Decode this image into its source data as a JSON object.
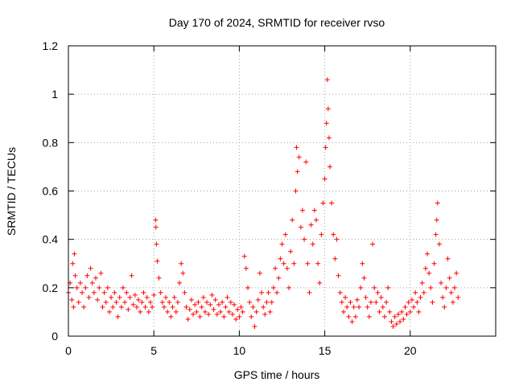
{
  "chart_data": {
    "type": "scatter",
    "title": "Day 170 of 2024, SRMTID for receiver rvso",
    "xlabel": "GPS time / hours",
    "ylabel": "SRMTID / TECUs",
    "xlim": [
      0,
      25
    ],
    "ylim": [
      0,
      1.2
    ],
    "x_ticks": [
      0,
      5,
      10,
      15,
      20
    ],
    "x_tick_labels": [
      "0",
      "5",
      "10",
      "15",
      "20"
    ],
    "y_ticks": [
      0,
      0.2,
      0.4,
      0.6,
      0.8,
      1.0,
      1.2
    ],
    "y_tick_labels": [
      "0",
      "0.2",
      "0.4",
      "0.6",
      "0.8",
      "1",
      "1.2"
    ],
    "grid": true,
    "marker": "+",
    "color": "#ff0000",
    "series": [
      {
        "name": "SRMTID",
        "points": [
          [
            0.0,
            0.18
          ],
          [
            0.1,
            0.22
          ],
          [
            0.2,
            0.15
          ],
          [
            0.25,
            0.3
          ],
          [
            0.3,
            0.12
          ],
          [
            0.35,
            0.34
          ],
          [
            0.4,
            0.25
          ],
          [
            0.5,
            0.2
          ],
          [
            0.6,
            0.14
          ],
          [
            0.7,
            0.22
          ],
          [
            0.8,
            0.18
          ],
          [
            0.9,
            0.12
          ],
          [
            1.0,
            0.2
          ],
          [
            1.1,
            0.25
          ],
          [
            1.2,
            0.16
          ],
          [
            1.3,
            0.28
          ],
          [
            1.4,
            0.22
          ],
          [
            1.5,
            0.18
          ],
          [
            1.6,
            0.24
          ],
          [
            1.7,
            0.15
          ],
          [
            1.8,
            0.2
          ],
          [
            1.9,
            0.26
          ],
          [
            2.0,
            0.12
          ],
          [
            2.1,
            0.18
          ],
          [
            2.2,
            0.14
          ],
          [
            2.3,
            0.2
          ],
          [
            2.4,
            0.1
          ],
          [
            2.5,
            0.16
          ],
          [
            2.6,
            0.12
          ],
          [
            2.7,
            0.18
          ],
          [
            2.8,
            0.14
          ],
          [
            2.9,
            0.08
          ],
          [
            3.0,
            0.16
          ],
          [
            3.1,
            0.12
          ],
          [
            3.2,
            0.2
          ],
          [
            3.3,
            0.14
          ],
          [
            3.4,
            0.18
          ],
          [
            3.5,
            0.11
          ],
          [
            3.6,
            0.16
          ],
          [
            3.7,
            0.25
          ],
          [
            3.8,
            0.13
          ],
          [
            3.9,
            0.17
          ],
          [
            4.0,
            0.12
          ],
          [
            4.1,
            0.15
          ],
          [
            4.2,
            0.1
          ],
          [
            4.3,
            0.14
          ],
          [
            4.4,
            0.18
          ],
          [
            4.5,
            0.12
          ],
          [
            4.6,
            0.16
          ],
          [
            4.7,
            0.1
          ],
          [
            4.8,
            0.14
          ],
          [
            4.9,
            0.12
          ],
          [
            5.0,
            0.17
          ],
          [
            5.1,
            0.48
          ],
          [
            5.12,
            0.45
          ],
          [
            5.15,
            0.38
          ],
          [
            5.2,
            0.31
          ],
          [
            5.3,
            0.24
          ],
          [
            5.4,
            0.18
          ],
          [
            5.5,
            0.14
          ],
          [
            5.6,
            0.12
          ],
          [
            5.7,
            0.16
          ],
          [
            5.8,
            0.1
          ],
          [
            5.9,
            0.14
          ],
          [
            6.0,
            0.08
          ],
          [
            6.1,
            0.12
          ],
          [
            6.2,
            0.16
          ],
          [
            6.3,
            0.1
          ],
          [
            6.4,
            0.14
          ],
          [
            6.5,
            0.22
          ],
          [
            6.6,
            0.3
          ],
          [
            6.7,
            0.26
          ],
          [
            6.8,
            0.18
          ],
          [
            6.9,
            0.12
          ],
          [
            7.0,
            0.07
          ],
          [
            7.1,
            0.11
          ],
          [
            7.2,
            0.15
          ],
          [
            7.3,
            0.09
          ],
          [
            7.4,
            0.13
          ],
          [
            7.5,
            0.1
          ],
          [
            7.6,
            0.14
          ],
          [
            7.7,
            0.08
          ],
          [
            7.8,
            0.12
          ],
          [
            7.9,
            0.16
          ],
          [
            8.0,
            0.1
          ],
          [
            8.1,
            0.14
          ],
          [
            8.2,
            0.09
          ],
          [
            8.3,
            0.13
          ],
          [
            8.4,
            0.17
          ],
          [
            8.5,
            0.11
          ],
          [
            8.6,
            0.15
          ],
          [
            8.7,
            0.09
          ],
          [
            8.8,
            0.13
          ],
          [
            8.9,
            0.1
          ],
          [
            9.0,
            0.14
          ],
          [
            9.1,
            0.08
          ],
          [
            9.2,
            0.12
          ],
          [
            9.3,
            0.16
          ],
          [
            9.4,
            0.1
          ],
          [
            9.5,
            0.14
          ],
          [
            9.6,
            0.09
          ],
          [
            9.7,
            0.13
          ],
          [
            9.8,
            0.07
          ],
          [
            9.9,
            0.11
          ],
          [
            10.0,
            0.08
          ],
          [
            10.1,
            0.12
          ],
          [
            10.2,
            0.1
          ],
          [
            10.3,
            0.33
          ],
          [
            10.4,
            0.28
          ],
          [
            10.5,
            0.2
          ],
          [
            10.6,
            0.14
          ],
          [
            10.7,
            0.08
          ],
          [
            10.8,
            0.12
          ],
          [
            10.9,
            0.04
          ],
          [
            11.0,
            0.1
          ],
          [
            11.1,
            0.15
          ],
          [
            11.2,
            0.26
          ],
          [
            11.3,
            0.18
          ],
          [
            11.4,
            0.12
          ],
          [
            11.5,
            0.09
          ],
          [
            11.6,
            0.14
          ],
          [
            11.7,
            0.18
          ],
          [
            11.8,
            0.1
          ],
          [
            11.9,
            0.14
          ],
          [
            12.0,
            0.2
          ],
          [
            12.1,
            0.28
          ],
          [
            12.2,
            0.18
          ],
          [
            12.3,
            0.24
          ],
          [
            12.4,
            0.32
          ],
          [
            12.5,
            0.38
          ],
          [
            12.6,
            0.3
          ],
          [
            12.7,
            0.42
          ],
          [
            12.8,
            0.28
          ],
          [
            12.9,
            0.2
          ],
          [
            13.0,
            0.35
          ],
          [
            13.1,
            0.48
          ],
          [
            13.2,
            0.3
          ],
          [
            13.3,
            0.6
          ],
          [
            13.35,
            0.78
          ],
          [
            13.4,
            0.68
          ],
          [
            13.5,
            0.74
          ],
          [
            13.6,
            0.45
          ],
          [
            13.7,
            0.52
          ],
          [
            13.8,
            0.4
          ],
          [
            13.9,
            0.72
          ],
          [
            14.0,
            0.3
          ],
          [
            14.1,
            0.18
          ],
          [
            14.2,
            0.46
          ],
          [
            14.3,
            0.38
          ],
          [
            14.4,
            0.52
          ],
          [
            14.5,
            0.48
          ],
          [
            14.6,
            0.3
          ],
          [
            14.7,
            0.22
          ],
          [
            14.8,
            0.42
          ],
          [
            14.9,
            0.55
          ],
          [
            15.0,
            0.65
          ],
          [
            15.05,
            0.78
          ],
          [
            15.1,
            0.88
          ],
          [
            15.15,
            1.06
          ],
          [
            15.2,
            0.94
          ],
          [
            15.25,
            0.82
          ],
          [
            15.3,
            0.7
          ],
          [
            15.4,
            0.55
          ],
          [
            15.5,
            0.42
          ],
          [
            15.6,
            0.32
          ],
          [
            15.7,
            0.4
          ],
          [
            15.8,
            0.25
          ],
          [
            15.9,
            0.18
          ],
          [
            16.0,
            0.14
          ],
          [
            16.1,
            0.1
          ],
          [
            16.2,
            0.16
          ],
          [
            16.3,
            0.12
          ],
          [
            16.4,
            0.08
          ],
          [
            16.5,
            0.14
          ],
          [
            16.6,
            0.06
          ],
          [
            16.7,
            0.12
          ],
          [
            16.8,
            0.08
          ],
          [
            16.9,
            0.15
          ],
          [
            17.0,
            0.12
          ],
          [
            17.1,
            0.2
          ],
          [
            17.2,
            0.3
          ],
          [
            17.3,
            0.24
          ],
          [
            17.4,
            0.16
          ],
          [
            17.5,
            0.12
          ],
          [
            17.6,
            0.08
          ],
          [
            17.7,
            0.14
          ],
          [
            17.8,
            0.38
          ],
          [
            17.9,
            0.2
          ],
          [
            18.0,
            0.14
          ],
          [
            18.1,
            0.18
          ],
          [
            18.2,
            0.1
          ],
          [
            18.3,
            0.16
          ],
          [
            18.4,
            0.12
          ],
          [
            18.5,
            0.08
          ],
          [
            18.6,
            0.14
          ],
          [
            18.7,
            0.2
          ],
          [
            18.8,
            0.1
          ],
          [
            18.9,
            0.06
          ],
          [
            19.0,
            0.04
          ],
          [
            19.1,
            0.08
          ],
          [
            19.2,
            0.05
          ],
          [
            19.3,
            0.09
          ],
          [
            19.4,
            0.06
          ],
          [
            19.5,
            0.1
          ],
          [
            19.6,
            0.07
          ],
          [
            19.7,
            0.12
          ],
          [
            19.8,
            0.09
          ],
          [
            19.9,
            0.14
          ],
          [
            20.0,
            0.1
          ],
          [
            20.1,
            0.15
          ],
          [
            20.2,
            0.12
          ],
          [
            20.3,
            0.18
          ],
          [
            20.4,
            0.14
          ],
          [
            20.5,
            0.1
          ],
          [
            20.6,
            0.16
          ],
          [
            20.7,
            0.22
          ],
          [
            20.8,
            0.18
          ],
          [
            20.9,
            0.28
          ],
          [
            21.0,
            0.34
          ],
          [
            21.1,
            0.26
          ],
          [
            21.2,
            0.2
          ],
          [
            21.3,
            0.14
          ],
          [
            21.4,
            0.3
          ],
          [
            21.5,
            0.42
          ],
          [
            21.55,
            0.48
          ],
          [
            21.6,
            0.55
          ],
          [
            21.7,
            0.38
          ],
          [
            21.8,
            0.22
          ],
          [
            21.9,
            0.16
          ],
          [
            22.0,
            0.12
          ],
          [
            22.1,
            0.2
          ],
          [
            22.2,
            0.32
          ],
          [
            22.3,
            0.24
          ],
          [
            22.4,
            0.18
          ],
          [
            22.5,
            0.14
          ],
          [
            22.6,
            0.2
          ],
          [
            22.7,
            0.26
          ],
          [
            22.8,
            0.16
          ]
        ]
      }
    ]
  }
}
